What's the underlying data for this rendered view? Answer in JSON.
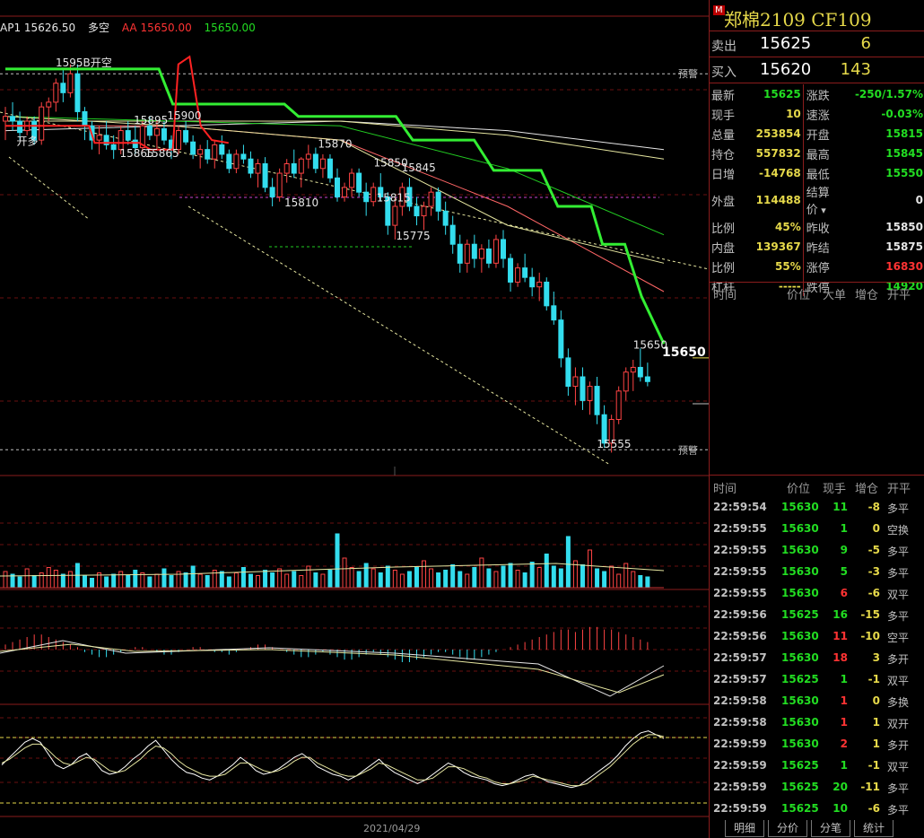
{
  "legend": {
    "indicator": "AP1",
    "value": "15626.50",
    "mode": "多空",
    "aa_label": "AA",
    "aa_value": "15650.00",
    "green_value": "15650.00"
  },
  "header": {
    "flag": "M",
    "name": "郑棉2109  CF109"
  },
  "quote": {
    "sell_label": "卖出",
    "sell_price": "15625",
    "sell_volume": "6",
    "buy_label": "买入",
    "buy_price": "15620",
    "buy_volume": "143"
  },
  "stats": [
    {
      "l1": "最新",
      "v1": "15625",
      "c1": "#22dd22",
      "l2": "涨跌",
      "v2": "-250/1.57%",
      "c2": "#22dd22"
    },
    {
      "l1": "现手",
      "v1": "10",
      "c1": "#e6d94a",
      "l2": "速涨",
      "v2": "-0.03%",
      "c2": "#22dd22"
    },
    {
      "l1": "总量",
      "v1": "253854",
      "c1": "#e6d94a",
      "l2": "开盘",
      "v2": "15815",
      "c2": "#22dd22"
    },
    {
      "l1": "持仓",
      "v1": "557832",
      "c1": "#e6d94a",
      "l2": "最高",
      "v2": "15845",
      "c2": "#22dd22"
    },
    {
      "l1": "日增",
      "v1": "-14768",
      "c1": "#e6d94a",
      "l2": "最低",
      "v2": "15550",
      "c2": "#22dd22"
    },
    {
      "l1": "外盘",
      "v1": "114488",
      "c1": "#e6d94a",
      "l2": "结算价",
      "v2": "0",
      "c2": "#e6e6e6"
    },
    {
      "l1": "比例",
      "v1": "45%",
      "c1": "#e6d94a",
      "l2": "昨收",
      "v2": "15850",
      "c2": "#e6e6e6"
    },
    {
      "l1": "内盘",
      "v1": "139367",
      "c1": "#e6d94a",
      "l2": "昨结",
      "v2": "15875",
      "c2": "#e6e6e6"
    },
    {
      "l1": "比例",
      "v1": "55%",
      "c1": "#e6d94a",
      "l2": "涨停",
      "v2": "16830",
      "c2": "#ff3333"
    },
    {
      "l1": "杠杆",
      "v1": "-----",
      "c1": "#e6d94a",
      "l2": "跌停",
      "v2": "14920",
      "c2": "#22dd22"
    }
  ],
  "big_order_header": {
    "time": "时间",
    "price": "价位",
    "big": "大单",
    "oi": "增仓",
    "oc": "开平"
  },
  "tick_header": {
    "time": "时间",
    "price": "价位",
    "vol": "现手",
    "oi": "增仓",
    "oc": "开平"
  },
  "ticks": [
    {
      "time": "22:59:54",
      "price": "15630",
      "vol": "11",
      "vc": "#22dd22",
      "oi": "-8",
      "oc": "多平"
    },
    {
      "time": "22:59:55",
      "price": "15630",
      "vol": "1",
      "vc": "#22dd22",
      "oi": "0",
      "oc": "空换"
    },
    {
      "time": "22:59:55",
      "price": "15630",
      "vol": "9",
      "vc": "#22dd22",
      "oi": "-5",
      "oc": "多平"
    },
    {
      "time": "22:59:55",
      "price": "15630",
      "vol": "5",
      "vc": "#22dd22",
      "oi": "-3",
      "oc": "多平"
    },
    {
      "time": "22:59:55",
      "price": "15630",
      "vol": "6",
      "vc": "#ff3333",
      "oi": "-6",
      "oc": "双平"
    },
    {
      "time": "22:59:56",
      "price": "15625",
      "vol": "16",
      "vc": "#22dd22",
      "oi": "-15",
      "oc": "多平"
    },
    {
      "time": "22:59:56",
      "price": "15630",
      "vol": "11",
      "vc": "#ff3333",
      "oi": "-10",
      "oc": "空平"
    },
    {
      "time": "22:59:57",
      "price": "15630",
      "vol": "18",
      "vc": "#ff3333",
      "oi": "3",
      "oc": "多开"
    },
    {
      "time": "22:59:57",
      "price": "15625",
      "vol": "1",
      "vc": "#22dd22",
      "oi": "-1",
      "oc": "双平"
    },
    {
      "time": "22:59:58",
      "price": "15630",
      "vol": "1",
      "vc": "#ff3333",
      "oi": "0",
      "oc": "多换"
    },
    {
      "time": "22:59:58",
      "price": "15630",
      "vol": "1",
      "vc": "#ff3333",
      "oi": "1",
      "oc": "双开"
    },
    {
      "time": "22:59:59",
      "price": "15630",
      "vol": "2",
      "vc": "#ff3333",
      "oi": "1",
      "oc": "多开"
    },
    {
      "time": "22:59:59",
      "price": "15625",
      "vol": "1",
      "vc": "#22dd22",
      "oi": "-1",
      "oc": "双平"
    },
    {
      "time": "22:59:59",
      "price": "15625",
      "vol": "20",
      "vc": "#22dd22",
      "oi": "-11",
      "oc": "多平"
    },
    {
      "time": "22:59:59",
      "price": "15625",
      "vol": "10",
      "vc": "#22dd22",
      "oi": "-6",
      "oc": "多平"
    }
  ],
  "tabs": [
    "明细",
    "分价",
    "分笔",
    "统计"
  ],
  "date_label": "2021/04/29",
  "chart_data": {
    "type": "candlestick",
    "y_range": [
      15540,
      15990
    ],
    "price_labels": [
      {
        "text": "1595B开空",
        "x": 18,
        "y": 15958
      },
      {
        "text": "15895",
        "x": 46,
        "y": 15897
      },
      {
        "text": "15900",
        "x": 58,
        "y": 15902
      },
      {
        "text": "开多",
        "x": 4,
        "y": 15875
      },
      {
        "text": "15865",
        "x": 41,
        "y": 15862
      },
      {
        "text": "15865",
        "x": 50,
        "y": 15862
      },
      {
        "text": "15870",
        "x": 112,
        "y": 15872
      },
      {
        "text": "15850",
        "x": 132,
        "y": 15852
      },
      {
        "text": "15845",
        "x": 142,
        "y": 15847
      },
      {
        "text": "15810",
        "x": 100,
        "y": 15810
      },
      {
        "text": "15815",
        "x": 133,
        "y": 15815
      },
      {
        "text": "15775",
        "x": 140,
        "y": 15775
      },
      {
        "text": "15650",
        "x": 225,
        "y": 15660
      },
      {
        "text": "15555",
        "x": 212,
        "y": 15555
      }
    ],
    "warning_label": "预警",
    "warning_levels": [
      15950,
      15553
    ],
    "current_price": "15650",
    "green_line": [
      [
        0,
        15955
      ],
      [
        10,
        15955
      ],
      [
        30,
        15955
      ],
      [
        55,
        15955
      ],
      [
        60,
        15918
      ],
      [
        100,
        15918
      ],
      [
        105,
        15905
      ],
      [
        140,
        15905
      ],
      [
        146,
        15880
      ],
      [
        168,
        15880
      ],
      [
        175,
        15848
      ],
      [
        192,
        15848
      ],
      [
        198,
        15810
      ],
      [
        210,
        15810
      ],
      [
        214,
        15770
      ],
      [
        222,
        15770
      ],
      [
        228,
        15715
      ],
      [
        236,
        15665
      ]
    ],
    "red_line": [
      [
        0,
        15895
      ],
      [
        30,
        15895
      ],
      [
        32,
        15877
      ],
      [
        48,
        15877
      ],
      [
        52,
        15870
      ],
      [
        60,
        15870
      ],
      [
        62,
        15960
      ],
      [
        66,
        15968
      ],
      [
        70,
        15895
      ],
      [
        74,
        15880
      ],
      [
        80,
        15877
      ]
    ],
    "ma_lines": [
      {
        "color": "#e6e6e6",
        "pts": [
          [
            0,
            15890
          ],
          [
            60,
            15895
          ],
          [
            120,
            15900
          ],
          [
            180,
            15890
          ],
          [
            236,
            15870
          ]
        ]
      },
      {
        "color": "#e6e6a0",
        "pts": [
          [
            0,
            15900
          ],
          [
            60,
            15900
          ],
          [
            120,
            15900
          ],
          [
            180,
            15885
          ],
          [
            236,
            15860
          ]
        ]
      },
      {
        "color": "#22cc22",
        "pts": [
          [
            0,
            15905
          ],
          [
            60,
            15900
          ],
          [
            120,
            15895
          ],
          [
            180,
            15850
          ],
          [
            236,
            15780
          ]
        ]
      },
      {
        "color": "#ff6666",
        "pts": [
          [
            0,
            15895
          ],
          [
            60,
            15895
          ],
          [
            120,
            15880
          ],
          [
            180,
            15810
          ],
          [
            236,
            15720
          ]
        ]
      },
      {
        "color": "#e6e6a0",
        "pts": [
          [
            0,
            15905
          ],
          [
            60,
            15895
          ],
          [
            120,
            15880
          ],
          [
            180,
            15790
          ],
          [
            236,
            15750
          ]
        ]
      }
    ],
    "candles": [
      [
        15900,
        15915,
        15880,
        15905
      ],
      [
        15905,
        15920,
        15890,
        15900
      ],
      [
        15900,
        15910,
        15880,
        15888
      ],
      [
        15890,
        15905,
        15885,
        15900
      ],
      [
        15900,
        15905,
        15875,
        15880
      ],
      [
        15880,
        15920,
        15875,
        15915
      ],
      [
        15915,
        15925,
        15900,
        15920
      ],
      [
        15920,
        15945,
        15910,
        15940
      ],
      [
        15940,
        15955,
        15920,
        15930
      ],
      [
        15930,
        15960,
        15925,
        15950
      ],
      [
        15950,
        15960,
        15900,
        15910
      ],
      [
        15910,
        15915,
        15880,
        15895
      ],
      [
        15895,
        15900,
        15870,
        15880
      ],
      [
        15880,
        15895,
        15865,
        15885
      ],
      [
        15885,
        15900,
        15870,
        15875
      ],
      [
        15875,
        15885,
        15860,
        15870
      ],
      [
        15870,
        15895,
        15865,
        15890
      ],
      [
        15890,
        15900,
        15875,
        15880
      ],
      [
        15880,
        15895,
        15865,
        15872
      ],
      [
        15872,
        15900,
        15868,
        15895
      ],
      [
        15895,
        15905,
        15880,
        15885
      ],
      [
        15885,
        15900,
        15870,
        15892
      ],
      [
        15892,
        15900,
        15875,
        15880
      ],
      [
        15880,
        15885,
        15860,
        15870
      ],
      [
        15870,
        15895,
        15865,
        15890
      ],
      [
        15890,
        15900,
        15875,
        15878
      ],
      [
        15878,
        15885,
        15860,
        15865
      ],
      [
        15865,
        15875,
        15850,
        15870
      ],
      [
        15870,
        15880,
        15855,
        15860
      ],
      [
        15860,
        15880,
        15850,
        15875
      ],
      [
        15875,
        15885,
        15860,
        15865
      ],
      [
        15865,
        15870,
        15845,
        15850
      ],
      [
        15850,
        15870,
        15845,
        15865
      ],
      [
        15865,
        15875,
        15855,
        15860
      ],
      [
        15860,
        15868,
        15840,
        15845
      ],
      [
        15845,
        15860,
        15830,
        15855
      ],
      [
        15855,
        15862,
        15825,
        15830
      ],
      [
        15830,
        15840,
        15810,
        15820
      ],
      [
        15820,
        15850,
        15815,
        15845
      ],
      [
        15845,
        15860,
        15835,
        15855
      ],
      [
        15855,
        15870,
        15840,
        15845
      ],
      [
        15845,
        15862,
        15830,
        15860
      ],
      [
        15860,
        15875,
        15850,
        15865
      ],
      [
        15865,
        15872,
        15845,
        15850
      ],
      [
        15850,
        15865,
        15840,
        15860
      ],
      [
        15860,
        15865,
        15835,
        15840
      ],
      [
        15840,
        15850,
        15815,
        15820
      ],
      [
        15820,
        15835,
        15815,
        15830
      ],
      [
        15830,
        15850,
        15820,
        15845
      ],
      [
        15845,
        15850,
        15820,
        15825
      ],
      [
        15825,
        15835,
        15800,
        15815
      ],
      [
        15815,
        15835,
        15810,
        15830
      ],
      [
        15830,
        15845,
        15815,
        15820
      ],
      [
        15820,
        15825,
        15780,
        15790
      ],
      [
        15790,
        15820,
        15775,
        15810
      ],
      [
        15810,
        15835,
        15800,
        15830
      ],
      [
        15830,
        15840,
        15805,
        15810
      ],
      [
        15810,
        15820,
        15790,
        15800
      ],
      [
        15800,
        15815,
        15785,
        15810
      ],
      [
        15810,
        15830,
        15800,
        15825
      ],
      [
        15825,
        15830,
        15795,
        15805
      ],
      [
        15805,
        15815,
        15780,
        15790
      ],
      [
        15790,
        15800,
        15760,
        15770
      ],
      [
        15770,
        15780,
        15740,
        15750
      ],
      [
        15750,
        15775,
        15740,
        15770
      ],
      [
        15770,
        15780,
        15745,
        15755
      ],
      [
        15755,
        15770,
        15740,
        15765
      ],
      [
        15765,
        15775,
        15745,
        15750
      ],
      [
        15750,
        15780,
        15745,
        15775
      ],
      [
        15775,
        15785,
        15745,
        15755
      ],
      [
        15755,
        15760,
        15720,
        15730
      ],
      [
        15730,
        15750,
        15725,
        15745
      ],
      [
        15745,
        15760,
        15730,
        15735
      ],
      [
        15735,
        15745,
        15715,
        15725
      ],
      [
        15725,
        15740,
        15710,
        15730
      ],
      [
        15730,
        15735,
        15700,
        15705
      ],
      [
        15705,
        15720,
        15685,
        15690
      ],
      [
        15690,
        15700,
        15640,
        15650
      ],
      [
        15650,
        15660,
        15610,
        15620
      ],
      [
        15620,
        15640,
        15600,
        15630
      ],
      [
        15630,
        15640,
        15595,
        15605
      ],
      [
        15605,
        15625,
        15590,
        15620
      ],
      [
        15620,
        15630,
        15580,
        15590
      ],
      [
        15590,
        15600,
        15555,
        15560
      ],
      [
        15560,
        15590,
        15550,
        15585
      ],
      [
        15585,
        15620,
        15580,
        15615
      ],
      [
        15615,
        15640,
        15605,
        15635
      ],
      [
        15635,
        15648,
        15615,
        15640
      ],
      [
        15640,
        15660,
        15625,
        15630
      ],
      [
        15630,
        15645,
        15620,
        15625
      ]
    ],
    "volume": [
      12,
      10,
      8,
      14,
      9,
      11,
      15,
      13,
      10,
      12,
      18,
      9,
      7,
      11,
      8,
      10,
      12,
      9,
      13,
      11,
      8,
      10,
      14,
      9,
      12,
      11,
      16,
      10,
      9,
      13,
      12,
      8,
      11,
      15,
      10,
      9,
      13,
      11,
      14,
      10,
      12,
      9,
      16,
      11,
      10,
      13,
      40,
      22,
      15,
      12,
      18,
      14,
      11,
      16,
      13,
      10,
      12,
      15,
      20,
      14,
      11,
      13,
      17,
      12,
      10,
      15,
      22,
      14,
      12,
      16,
      18,
      13,
      11,
      19,
      15,
      25,
      16,
      14,
      38,
      20,
      17,
      28,
      14,
      12,
      16,
      10,
      18,
      12,
      9,
      8
    ],
    "macd_hist": [
      2,
      3,
      4,
      5,
      6,
      6,
      5,
      4,
      3,
      2,
      1,
      -1,
      -2,
      -3,
      -3,
      -2,
      -1,
      0,
      1,
      1,
      0,
      -1,
      -2,
      -2,
      -1,
      0,
      1,
      1,
      0,
      -1,
      -1,
      -2,
      -1,
      0,
      1,
      2,
      2,
      1,
      0,
      -1,
      -2,
      -3,
      -3,
      -2,
      -1,
      -2,
      -3,
      -4,
      -4,
      -3,
      -2,
      -1,
      -2,
      -3,
      -4,
      -5,
      -5,
      -4,
      -3,
      -2,
      -1,
      -1,
      -2,
      -3,
      -4,
      -4,
      -3,
      -2,
      -1,
      0,
      1,
      2,
      3,
      4,
      5,
      6,
      7,
      8,
      8,
      7,
      8,
      9,
      9,
      8,
      8,
      7,
      6,
      5,
      4,
      3
    ],
    "kd_lines": [
      {
        "color": "#ffffff",
        "pts": [
          50,
          58,
          66,
          74,
          78,
          74,
          62,
          50,
          46,
          50,
          58,
          62,
          54,
          44,
          40,
          42,
          48,
          56,
          62,
          70,
          76,
          66,
          56,
          48,
          42,
          40,
          36,
          34,
          38,
          44,
          50,
          58,
          52,
          44,
          40,
          42,
          46,
          52,
          58,
          62,
          56,
          48,
          44,
          40,
          38,
          34,
          38,
          44,
          50,
          56,
          48,
          42,
          38,
          34,
          30,
          34,
          40,
          46,
          52,
          48,
          42,
          38,
          36,
          34,
          30,
          28,
          30,
          34,
          38,
          40,
          36,
          32,
          30,
          28,
          26,
          28,
          34,
          40,
          46,
          52,
          60,
          70,
          78,
          84,
          86,
          82,
          78
        ]
      },
      {
        "color": "#e6e6a0",
        "pts": [
          52,
          56,
          62,
          68,
          72,
          72,
          66,
          58,
          52,
          50,
          54,
          58,
          56,
          50,
          44,
          42,
          44,
          50,
          56,
          64,
          70,
          68,
          62,
          54,
          48,
          44,
          40,
          38,
          38,
          40,
          46,
          52,
          52,
          48,
          44,
          42,
          44,
          48,
          54,
          58,
          58,
          52,
          48,
          44,
          40,
          38,
          38,
          42,
          46,
          52,
          50,
          46,
          42,
          38,
          34,
          34,
          36,
          42,
          48,
          48,
          46,
          42,
          38,
          36,
          32,
          30,
          30,
          32,
          34,
          38,
          36,
          34,
          32,
          30,
          28,
          28,
          30,
          36,
          42,
          48,
          56,
          64,
          72,
          78,
          82,
          82,
          80
        ]
      }
    ]
  }
}
